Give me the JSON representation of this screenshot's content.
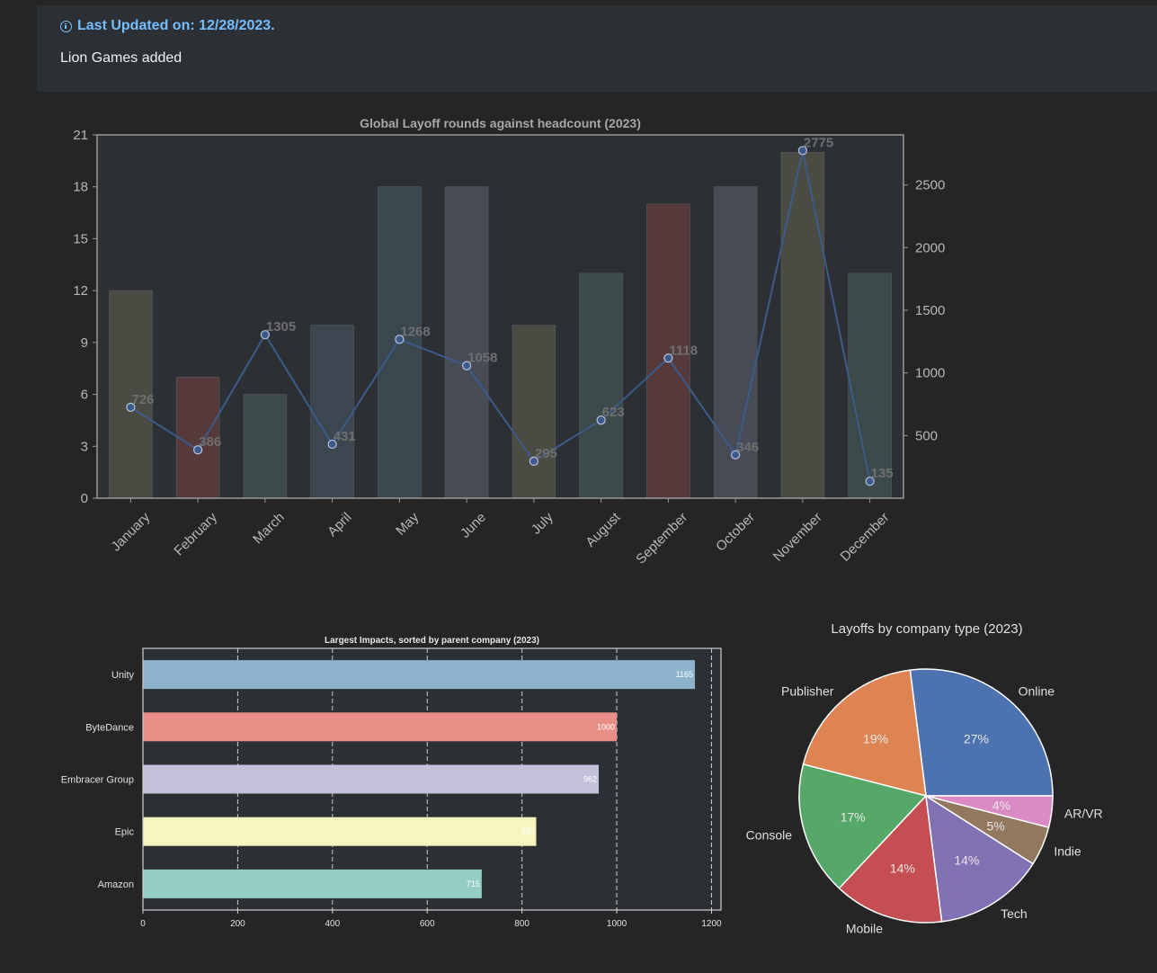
{
  "banner": {
    "updated": "Last Updated on: 12/28/2023.",
    "message": "Lion Games added"
  },
  "colors": {
    "page_bg": "#252526",
    "plot_bg": "#2c3034",
    "axis": "#9a9a9a",
    "line": "#3d5a8a",
    "marker": "#7d93c2"
  },
  "chart_data": [
    {
      "type": "bar",
      "title": "Global Layoff rounds against headcount (2023)",
      "categories": [
        "January",
        "February",
        "March",
        "April",
        "May",
        "June",
        "July",
        "August",
        "September",
        "October",
        "November",
        "December"
      ],
      "series": [
        {
          "kind": "bar",
          "axis": "left",
          "values": [
            12,
            7,
            6,
            10,
            18,
            18,
            10,
            13,
            17,
            18,
            20,
            13
          ],
          "colors": [
            "#4a4c43",
            "#55393b",
            "#3d4a4a",
            "#3c4651",
            "#3a474e",
            "#474b55",
            "#4a4c43",
            "#3d4a4a",
            "#55393b",
            "#474b55",
            "#4a4c43",
            "#3d4a4a"
          ]
        },
        {
          "kind": "line",
          "axis": "right",
          "values": [
            726,
            386,
            1305,
            431,
            1268,
            1058,
            295,
            623,
            1118,
            346,
            2775,
            135
          ],
          "labels": [
            "726",
            "386",
            "1305",
            "431",
            "1268",
            "1058",
            "295",
            "623",
            "1118",
            "346",
            "2775",
            "135"
          ]
        }
      ],
      "ylim": [
        0,
        21
      ],
      "yticks": [
        "0",
        "3",
        "6",
        "9",
        "12",
        "15",
        "18",
        "21"
      ],
      "y2lim": [
        0,
        2900
      ],
      "y2ticks": [
        "500",
        "1000",
        "1500",
        "2000",
        "2500"
      ],
      "grid": false
    },
    {
      "type": "bar",
      "orientation": "horizontal",
      "title": "Largest Impacts, sorted by parent company (2023)",
      "categories": [
        "Unity",
        "ByteDance",
        "Embracer Group",
        "Epic",
        "Amazon"
      ],
      "values": [
        1165,
        1000,
        962,
        830,
        715
      ],
      "value_labels": [
        "1165",
        "1000",
        "962",
        "830",
        "715"
      ],
      "colors": [
        "#8db2cc",
        "#e88e86",
        "#c4c0dc",
        "#f6f5bf",
        "#94cdc3"
      ],
      "xlim": [
        0,
        1220
      ],
      "xticks": [
        "0",
        "200",
        "400",
        "600",
        "800",
        "1000",
        "1200"
      ],
      "grid": true
    },
    {
      "type": "pie",
      "title": "Layoffs by company type (2023)",
      "labels": [
        "Online",
        "Publisher",
        "Console",
        "Mobile",
        "Tech",
        "Indie",
        "AR/VR"
      ],
      "values": [
        27,
        19,
        17,
        14,
        14,
        5,
        4
      ],
      "pct_labels": [
        "27%",
        "19%",
        "17%",
        "14%",
        "14%",
        "5%",
        "4%"
      ],
      "colors": [
        "#4c72b0",
        "#dd8452",
        "#55a868",
        "#c44e52",
        "#8172b3",
        "#937860",
        "#da8bc3"
      ]
    }
  ]
}
